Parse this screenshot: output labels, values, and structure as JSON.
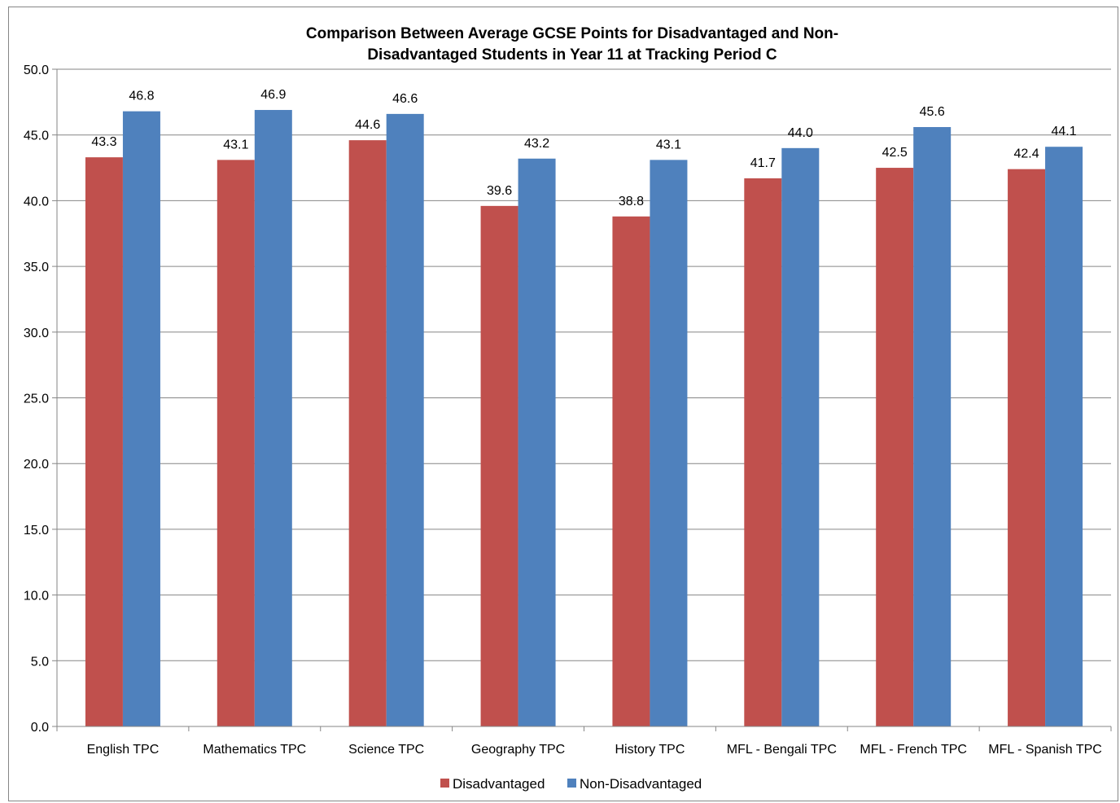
{
  "chart_data": {
    "type": "bar",
    "title_lines": [
      "Comparison Between Average GCSE Points for Disadvantaged and Non-",
      "Disadvantaged Students in Year 11 at Tracking Period C"
    ],
    "categories": [
      "English TPC",
      "Mathematics TPC",
      "Science TPC",
      "Geography TPC",
      "History TPC",
      "MFL - Bengali TPC",
      "MFL - French TPC",
      "MFL - Spanish TPC"
    ],
    "series": [
      {
        "name": "Disadvantaged",
        "color": "#C0504D",
        "values": [
          43.3,
          43.1,
          44.6,
          39.6,
          38.8,
          41.7,
          42.5,
          42.4
        ],
        "labels": [
          "43.3",
          "43.1",
          "44.6",
          "39.6",
          "38.8",
          "41.7",
          "42.5",
          "42.4"
        ]
      },
      {
        "name": "Non-Disadvantaged",
        "color": "#4F81BD",
        "values": [
          46.8,
          46.9,
          46.6,
          43.2,
          43.1,
          44.0,
          45.6,
          44.1
        ],
        "labels": [
          "46.8",
          "46.9",
          "46.6",
          "43.2",
          "43.1",
          "44.0",
          "45.6",
          "44.1"
        ]
      }
    ],
    "ylim": [
      0,
      50
    ],
    "y_ticks": [
      "0.0",
      "5.0",
      "10.0",
      "15.0",
      "20.0",
      "25.0",
      "30.0",
      "35.0",
      "40.0",
      "45.0",
      "50.0"
    ],
    "grid": true,
    "legend_position": "bottom"
  }
}
